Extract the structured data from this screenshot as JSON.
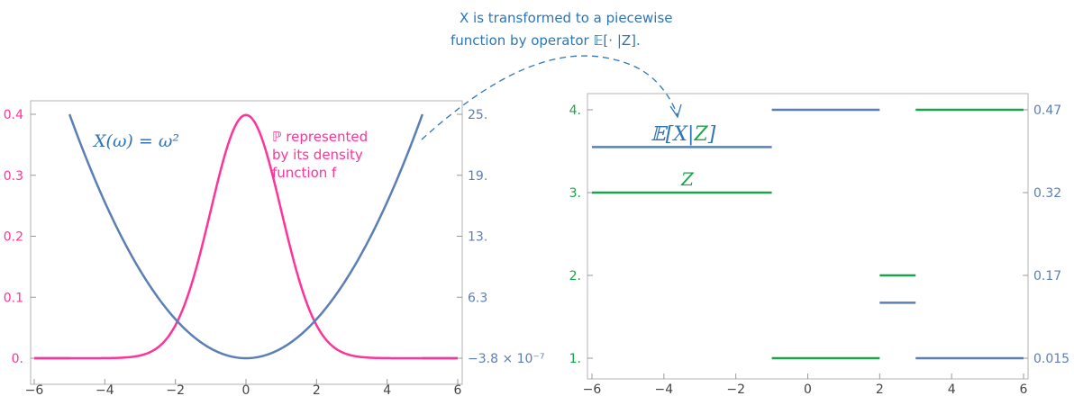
{
  "colors": {
    "pink": "#ff3399",
    "blue": "#5b7fb4",
    "green": "#1aa34a",
    "annotation_blue": "#2e75b6",
    "axis_gray": "#999999",
    "tick_gray": "#444444"
  },
  "annotation": {
    "line1": "X is transformed to a piecewise",
    "line2": "function by operator 𝔼[· |Z]."
  },
  "chart_data": [
    {
      "type": "line",
      "x_range": [
        -6,
        6
      ],
      "x_ticks": [
        "−6",
        "−4",
        "−2",
        "0",
        "2",
        "4",
        "6"
      ],
      "y_left_range": [
        0,
        0.4
      ],
      "y_left_ticks": [
        "0.",
        "0.1",
        "0.2",
        "0.3",
        "0.4"
      ],
      "y_right_range": [
        -3.8e-07,
        25
      ],
      "y_right_ticks": [
        "−3.8 × 10⁻⁷",
        "6.3",
        "13.",
        "19.",
        "25."
      ],
      "series": [
        {
          "name": "X(ω) = ω²",
          "axis": "right",
          "function": "w^2 on [-5,5], 0 outside",
          "domain": [
            -6,
            6
          ]
        },
        {
          "name": "ℙ represented by its density function f",
          "axis": "left",
          "function": "standard normal density",
          "domain": [
            -6,
            6
          ]
        }
      ],
      "labels": {
        "x_series": "X(ω) = ω²",
        "density_line1": "ℙ represented",
        "density_line2": "by its density",
        "density_line3": "function f"
      }
    },
    {
      "type": "line",
      "x_range": [
        -6,
        6
      ],
      "x_ticks": [
        "−6",
        "−4",
        "−2",
        "0",
        "2",
        "4",
        "6"
      ],
      "y_left_range": [
        1,
        4
      ],
      "y_left_ticks": [
        "1.",
        "2.",
        "3.",
        "4."
      ],
      "y_right_ticks": [
        "0.015",
        "0.17",
        "0.32",
        "0.47"
      ],
      "series": [
        {
          "name": "Z",
          "segments": [
            {
              "x": [
                -6,
                -1
              ],
              "y": 3
            },
            {
              "x": [
                -1,
                2
              ],
              "y": 1
            },
            {
              "x": [
                2,
                3
              ],
              "y": 2
            },
            {
              "x": [
                3,
                6
              ],
              "y": 4
            }
          ]
        },
        {
          "name": "𝔼[X|Z]",
          "segments": [
            {
              "x": [
                -6,
                -1
              ],
              "y": 3.55
            },
            {
              "x": [
                -1,
                2
              ],
              "y": 4
            },
            {
              "x": [
                2,
                3
              ],
              "y": 1.67
            },
            {
              "x": [
                3,
                6
              ],
              "y": 1
            }
          ]
        }
      ],
      "labels": {
        "expect_prefix": "𝔼[X|",
        "expect_z": "Z",
        "expect_suffix": "]",
        "z": "Z"
      }
    }
  ]
}
